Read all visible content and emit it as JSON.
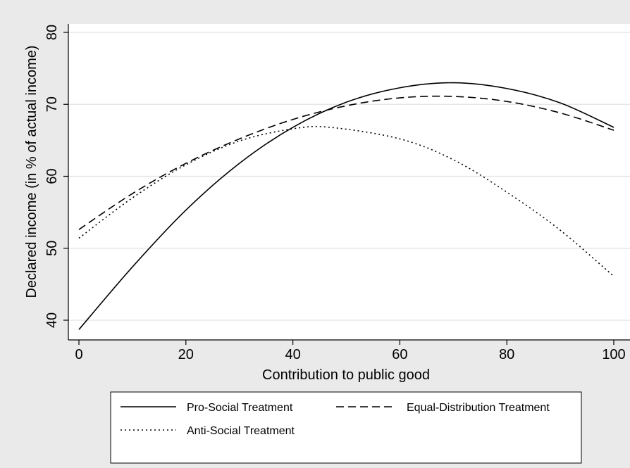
{
  "chart_data": {
    "type": "line",
    "title": "",
    "xlabel": "Contribution to public good",
    "ylabel": "Declared income (in % of actual income)",
    "xlim": [
      -2,
      101
    ],
    "ylim": [
      37,
      81.5
    ],
    "x_ticks": [
      0,
      20,
      40,
      60,
      80,
      100
    ],
    "y_ticks": [
      40,
      50,
      60,
      70,
      80
    ],
    "x_tick_labels": [
      "0",
      "20",
      "40",
      "60",
      "80",
      "100"
    ],
    "y_tick_labels": [
      "40",
      "50",
      "60",
      "70",
      "80"
    ],
    "grid": "horizontal",
    "legend_position": "bottom",
    "series": [
      {
        "name": "Pro-Social Treatment",
        "style": "solid",
        "x": [
          0,
          10,
          20,
          30,
          40,
          50,
          60,
          70,
          80,
          90,
          100
        ],
        "y": [
          38.7,
          47.4,
          55.3,
          61.8,
          66.8,
          70.3,
          72.3,
          73.0,
          72.2,
          70.2,
          66.8
        ]
      },
      {
        "name": "Equal-Distribution Treatment",
        "style": "dashed",
        "x": [
          0,
          10,
          20,
          30,
          40,
          50,
          60,
          70,
          80,
          90,
          100
        ],
        "y": [
          52.6,
          57.6,
          61.8,
          65.2,
          67.9,
          69.8,
          70.9,
          71.1,
          70.4,
          68.8,
          66.4
        ]
      },
      {
        "name": "Anti-Social Treatment",
        "style": "dotted",
        "x": [
          0,
          10,
          20,
          30,
          40,
          47,
          60,
          70,
          80,
          90,
          100
        ],
        "y": [
          51.4,
          57.0,
          61.6,
          64.9,
          66.6,
          66.8,
          65.2,
          62.3,
          57.8,
          52.5,
          46.1
        ]
      }
    ]
  }
}
